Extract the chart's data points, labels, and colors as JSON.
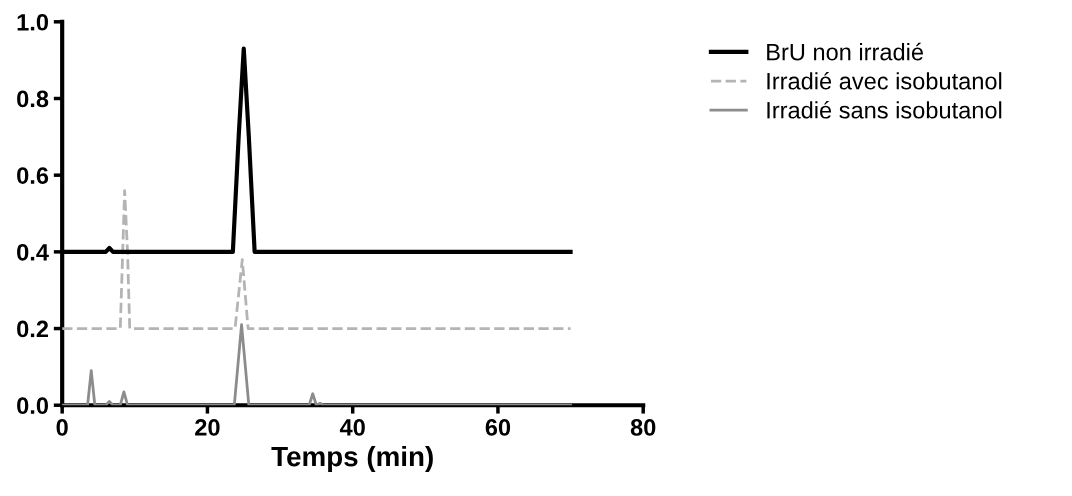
{
  "chart_data": {
    "type": "line",
    "xlabel": "Temps (min)",
    "xlim": [
      0,
      80
    ],
    "ylim": [
      0,
      1.0
    ],
    "xticks": [
      0,
      20,
      40,
      60,
      80
    ],
    "yticks": [
      {
        "value": 0,
        "label": "0.0"
      },
      0.2,
      0.4,
      0.6,
      0.8,
      {
        "value": 1.0,
        "label": "1.0"
      }
    ],
    "legend": "right",
    "grid": false,
    "series": [
      {
        "name": "BrU non irradié",
        "color": "#000000",
        "line_style": "solid",
        "x": [
          0,
          6,
          6.5,
          7,
          23.5,
          24.3,
          25,
          25.7,
          26.5,
          70
        ],
        "values": [
          0.4,
          0.4,
          0.41,
          0.4,
          0.4,
          0.7,
          0.93,
          0.7,
          0.4,
          0.4
        ]
      },
      {
        "name": "Irradié avec isobutanol",
        "color": "#b4b4b4",
        "line_style": "dashed",
        "x": [
          0,
          8,
          8.6,
          9.0,
          9.3,
          23.8,
          24.8,
          25.6,
          70
        ],
        "values": [
          0.2,
          0.2,
          0.56,
          0.4,
          0.2,
          0.2,
          0.38,
          0.2,
          0.2
        ]
      },
      {
        "name": "Irradié sans isobutanol",
        "color": "#8c8c8c",
        "line_style": "solid",
        "x": [
          0,
          3.5,
          4,
          4.5,
          6,
          6.5,
          7,
          8,
          8.5,
          9,
          23.7,
          24.7,
          25.7,
          34,
          34.5,
          35,
          35.5,
          36,
          70
        ],
        "values": [
          0,
          0,
          0.09,
          0,
          0,
          0.01,
          0,
          0,
          0.035,
          0,
          0,
          0.21,
          0,
          0,
          0.03,
          0,
          0.005,
          0,
          0
        ]
      }
    ]
  }
}
